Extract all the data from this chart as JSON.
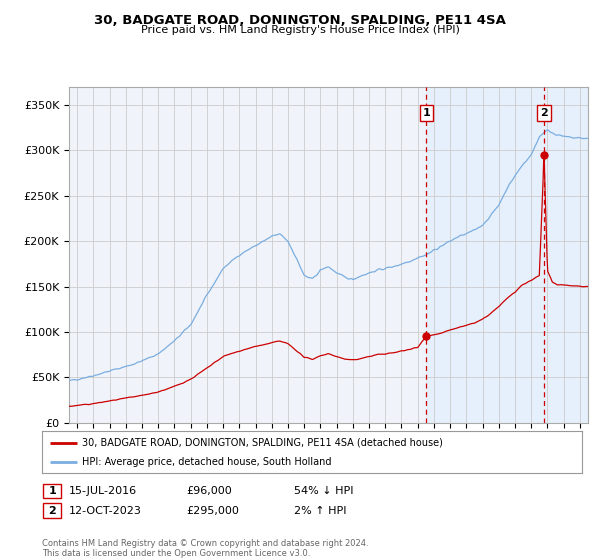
{
  "title": "30, BADGATE ROAD, DONINGTON, SPALDING, PE11 4SA",
  "subtitle": "Price paid vs. HM Land Registry's House Price Index (HPI)",
  "ylabel_ticks": [
    "£0",
    "£50K",
    "£100K",
    "£150K",
    "£200K",
    "£250K",
    "£300K",
    "£350K"
  ],
  "ytick_values": [
    0,
    50000,
    100000,
    150000,
    200000,
    250000,
    300000,
    350000
  ],
  "ylim": [
    0,
    370000
  ],
  "xlim_start": 1994.5,
  "xlim_end": 2026.5,
  "transaction1_date": 2016.54,
  "transaction1_price": 96000,
  "transaction2_date": 2023.79,
  "transaction2_price": 295000,
  "hpi_color": "#7aade0",
  "hpi_shade_color": "#ddeeff",
  "price_color": "#cc0000",
  "vline_color": "#cc0000",
  "grid_color": "#cccccc",
  "legend_label_price": "30, BADGATE ROAD, DONINGTON, SPALDING, PE11 4SA (detached house)",
  "legend_label_hpi": "HPI: Average price, detached house, South Holland",
  "annotation1_label": "15-JUL-2016",
  "annotation1_price": "£96,000",
  "annotation1_hpi": "54% ↓ HPI",
  "annotation2_label": "12-OCT-2023",
  "annotation2_price": "£295,000",
  "annotation2_hpi": "2% ↑ HPI",
  "footer": "Contains HM Land Registry data © Crown copyright and database right 2024.\nThis data is licensed under the Open Government Licence v3.0.",
  "background_color": "#ffffff",
  "plot_bg_color": "#f0f4fa"
}
